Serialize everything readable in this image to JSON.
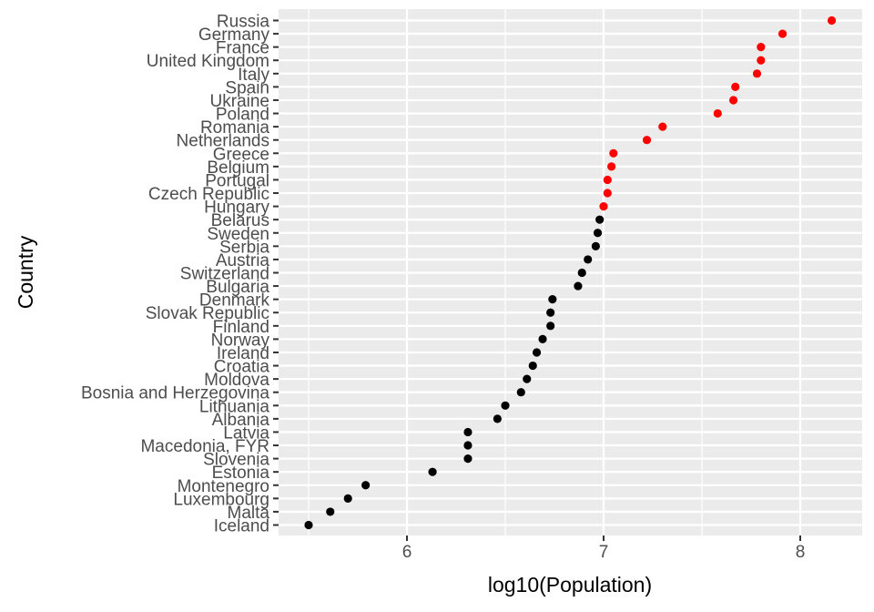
{
  "chart_data": {
    "type": "scatter",
    "title": "",
    "xlabel": "log10(Population)",
    "ylabel": "Country",
    "xlim": [
      5.4,
      8.3
    ],
    "xticks": [
      6,
      7,
      8
    ],
    "grid": true,
    "legend": "none",
    "colors": {
      "high": "#ff0000",
      "low": "#000000",
      "panel": "#ebebeb",
      "grid": "#ffffff"
    },
    "categories": [
      "Iceland",
      "Malta",
      "Luxembourg",
      "Montenegro",
      "Estonia",
      "Slovenia",
      "Macedonia, FYR",
      "Latvia",
      "Albania",
      "Lithuania",
      "Bosnia and Herzegovina",
      "Moldova",
      "Croatia",
      "Ireland",
      "Norway",
      "Finland",
      "Slovak Republic",
      "Denmark",
      "Bulgaria",
      "Switzerland",
      "Austria",
      "Serbia",
      "Sweden",
      "Belarus",
      "Hungary",
      "Czech Republic",
      "Portugal",
      "Belgium",
      "Greece",
      "Netherlands",
      "Romania",
      "Poland",
      "Ukraine",
      "Spain",
      "Italy",
      "United Kingdom",
      "France",
      "Germany",
      "Russia"
    ],
    "values": [
      5.5,
      5.61,
      5.7,
      5.79,
      6.13,
      6.31,
      6.31,
      6.31,
      6.46,
      6.5,
      6.58,
      6.61,
      6.64,
      6.66,
      6.69,
      6.73,
      6.73,
      6.74,
      6.87,
      6.89,
      6.92,
      6.96,
      6.97,
      6.98,
      7.0,
      7.02,
      7.02,
      7.04,
      7.05,
      7.22,
      7.3,
      7.58,
      7.66,
      7.67,
      7.78,
      7.8,
      7.8,
      7.91,
      8.16
    ],
    "point_colors": [
      "low",
      "low",
      "low",
      "low",
      "low",
      "low",
      "low",
      "low",
      "low",
      "low",
      "low",
      "low",
      "low",
      "low",
      "low",
      "low",
      "low",
      "low",
      "low",
      "low",
      "low",
      "low",
      "low",
      "low",
      "high",
      "high",
      "high",
      "high",
      "high",
      "high",
      "high",
      "high",
      "high",
      "high",
      "high",
      "high",
      "high",
      "high",
      "high"
    ]
  }
}
